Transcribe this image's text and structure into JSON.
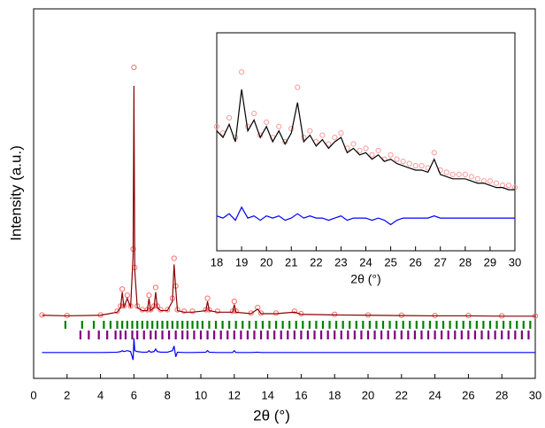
{
  "chart_data": [
    {
      "type": "line",
      "xlabel": "2θ (°)",
      "ylabel": "Intensity (a.u.)",
      "xlim": [
        0,
        30
      ],
      "ylim": [
        -20,
        100
      ],
      "xticks": [
        0,
        2,
        4,
        6,
        8,
        10,
        12,
        14,
        16,
        18,
        20,
        22,
        24,
        26,
        28,
        30
      ],
      "x": [
        0.5,
        2,
        4,
        5.0,
        5.2,
        5.3,
        5.4,
        5.6,
        5.8,
        5.95,
        6.0,
        6.05,
        6.2,
        6.5,
        6.8,
        6.9,
        7.0,
        7.2,
        7.3,
        7.4,
        7.6,
        8.0,
        8.3,
        8.4,
        8.5,
        8.6,
        9.0,
        9.5,
        10.3,
        10.4,
        10.5,
        11.0,
        11.9,
        12.0,
        12.1,
        13.0,
        13.4,
        13.6,
        14.5,
        15.6,
        16,
        18,
        20,
        22,
        24,
        26,
        28,
        30
      ],
      "series": [
        {
          "color": "#ff6a6a",
          "marker": "circle",
          "values": [
            0.6,
            0.4,
            0.6,
            1.8,
            3.5,
            9,
            3.5,
            7,
            3.5,
            22,
            81,
            16,
            3.5,
            2.3,
            2.3,
            7,
            2.3,
            3.5,
            9.5,
            3.5,
            2.3,
            2.3,
            6,
            19,
            10,
            2.3,
            1.8,
            1.8,
            2.3,
            6,
            2.3,
            1.8,
            1.8,
            5,
            1.8,
            1.2,
            3,
            1.2,
            1.2,
            1.8,
            1,
            0.8,
            0.6,
            0.5,
            0.4,
            0.4,
            0.3,
            0.3
          ]
        },
        {
          "color": "#8b0000",
          "marker": "line",
          "values": [
            0.5,
            0.3,
            0.5,
            1.5,
            3,
            8,
            3,
            6,
            3,
            20,
            75,
            15,
            3,
            2,
            2,
            6,
            2,
            3,
            8,
            3,
            2,
            2,
            5,
            17,
            9,
            2,
            1.5,
            1.5,
            2,
            5,
            2,
            1.5,
            1.5,
            4,
            1.5,
            1,
            2.5,
            1,
            1,
            1.5,
            0.8,
            0.6,
            0.5,
            0.4,
            0.3,
            0.3,
            0.2,
            0.2
          ]
        },
        {
          "color": "#0000ff",
          "marker": "line",
          "values": [
            -11.6,
            -11.6,
            -11.6,
            -11.5,
            -11.3,
            -11,
            -11.3,
            -11,
            -11.3,
            -14,
            -7,
            -11,
            -11.3,
            -11.5,
            -11.5,
            -11,
            -11.5,
            -11.3,
            -10.5,
            -11.3,
            -11.5,
            -11.5,
            -11,
            -9.5,
            -13,
            -11.5,
            -11.6,
            -11.6,
            -11.5,
            -11,
            -11.5,
            -11.6,
            -11.6,
            -11,
            -11.6,
            -11.6,
            -11.5,
            -11.6,
            -11.6,
            -11.6,
            -11.6,
            -11.6,
            -11.6,
            -11.6,
            -11.6,
            -11.6,
            -11.6,
            -11.6
          ]
        }
      ],
      "bragg": [
        {
          "color": "#008000",
          "positions": [
            1.9,
            2.9,
            3.6,
            4.2,
            4.6,
            5.0,
            5.3,
            5.6,
            5.9,
            6.2,
            6.5,
            6.8,
            7.1,
            7.4,
            7.7,
            8.0,
            8.3,
            8.6,
            8.9,
            9.2,
            9.5,
            9.8,
            10.1,
            10.5,
            10.9,
            11.3,
            11.7,
            12.1,
            12.5,
            12.9,
            13.3,
            13.7,
            14.1,
            14.5,
            14.9,
            15.3,
            15.7,
            16.1,
            16.5,
            16.9,
            17.3,
            17.7,
            18.1,
            18.5,
            18.9,
            19.3,
            19.7,
            20.1,
            20.5,
            20.9,
            21.3,
            21.7,
            22.1,
            22.5,
            22.9,
            23.3,
            23.7,
            24.1,
            24.5,
            24.9,
            25.3,
            25.7,
            26.1,
            26.5,
            26.9,
            27.3,
            27.7,
            28.1,
            28.5,
            28.9,
            29.3,
            29.7
          ]
        },
        {
          "color": "#800080",
          "positions": [
            2.8,
            3.3,
            3.9,
            4.4,
            4.9,
            5.2,
            5.5,
            5.9,
            6.2,
            6.6,
            7.0,
            7.3,
            7.7,
            8.1,
            8.5,
            8.9,
            9.2,
            9.6,
            10.0,
            10.4,
            10.8,
            11.2,
            11.6,
            12.0,
            12.4,
            12.8,
            13.2,
            13.6,
            14.0,
            14.4,
            14.8,
            15.2,
            15.6,
            16.0,
            16.4,
            16.8,
            17.2,
            17.6,
            18.0,
            18.4,
            18.8,
            19.2,
            19.6,
            20.0,
            20.4,
            20.8,
            21.2,
            21.6,
            22.0,
            22.4,
            22.8,
            23.2,
            23.6,
            24.0,
            24.4,
            24.8,
            25.2,
            25.6,
            26.0,
            26.4,
            26.8,
            27.2,
            27.6,
            28.0,
            28.4,
            28.8,
            29.2,
            29.6
          ]
        }
      ]
    },
    {
      "type": "line",
      "xlabel": "2θ (°)",
      "xlim": [
        18,
        30
      ],
      "ylim": [
        0,
        100
      ],
      "xticks": [
        18,
        19,
        20,
        21,
        22,
        23,
        24,
        25,
        26,
        27,
        28,
        29,
        30
      ],
      "x": [
        18,
        18.25,
        18.5,
        18.75,
        19,
        19.25,
        19.5,
        19.75,
        20,
        20.25,
        20.5,
        20.75,
        21,
        21.25,
        21.5,
        21.75,
        22,
        22.25,
        22.5,
        22.75,
        23,
        23.25,
        23.5,
        23.75,
        24,
        24.25,
        24.5,
        24.75,
        25,
        25.25,
        25.5,
        25.75,
        26,
        26.25,
        26.5,
        26.75,
        27,
        27.25,
        27.5,
        27.75,
        28,
        28.25,
        28.5,
        28.75,
        29,
        29.25,
        29.5,
        29.75,
        30
      ],
      "series": [
        {
          "color": "#ff9a9a",
          "marker": "circle",
          "values": [
            57,
            54,
            61,
            52,
            82,
            57,
            63,
            53,
            59,
            52,
            57,
            50,
            56,
            75,
            52,
            55,
            50,
            53,
            49,
            52,
            54,
            47,
            49,
            46,
            47,
            44,
            46,
            42,
            44,
            42,
            41,
            40,
            39,
            39,
            38,
            45,
            37,
            36,
            35,
            35,
            35,
            34,
            33,
            32,
            32,
            31,
            30,
            30,
            29
          ]
        },
        {
          "color": "#000000",
          "marker": "line",
          "values": [
            55,
            52,
            58,
            50,
            74,
            55,
            60,
            52,
            57,
            50,
            55,
            49,
            54,
            68,
            50,
            53,
            48,
            51,
            47,
            50,
            52,
            45,
            47,
            44,
            45,
            42,
            44,
            41,
            42,
            40,
            39,
            38,
            37,
            37,
            36,
            42,
            35,
            34,
            33,
            33,
            33,
            32,
            31,
            31,
            30,
            29,
            29,
            28,
            28
          ]
        },
        {
          "color": "#0000ff",
          "marker": "line",
          "values": [
            16,
            15,
            17,
            14,
            20,
            15,
            16,
            14,
            16,
            15,
            16,
            14,
            15,
            17,
            15,
            16,
            15,
            15,
            14,
            15,
            16,
            14,
            15,
            15,
            15,
            14,
            15,
            14,
            12,
            14,
            15,
            15,
            15,
            15,
            15,
            16,
            15,
            15,
            15,
            15,
            15,
            15,
            15,
            15,
            15,
            15,
            15,
            15,
            15
          ]
        }
      ]
    }
  ]
}
